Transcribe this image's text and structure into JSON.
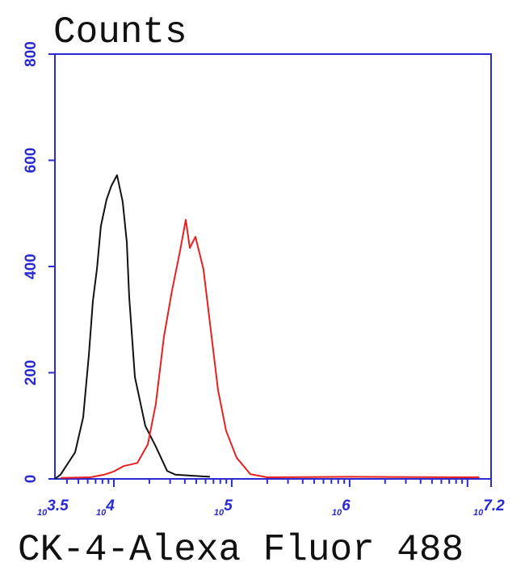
{
  "chart_data": {
    "type": "line",
    "title": "Counts",
    "xlabel": "CK-4-Alexa Fluor 488",
    "ylabel": "",
    "x_scale": "log10",
    "xlim": [
      3.5,
      7.2
    ],
    "ylim": [
      0,
      800
    ],
    "x_tick_labels": [
      {
        "value": 3.5,
        "base": "10",
        "exp": "3.5"
      },
      {
        "value": 4,
        "base": "10",
        "exp": "4"
      },
      {
        "value": 5,
        "base": "10",
        "exp": "5"
      },
      {
        "value": 6,
        "base": "10",
        "exp": "6"
      },
      {
        "value": 7.2,
        "base": "10",
        "exp": "7.2"
      }
    ],
    "y_ticks": [
      "0",
      "200",
      "400",
      "600",
      "800"
    ],
    "grid": false,
    "axis_color": "#2a2ad0",
    "series": [
      {
        "color": "#111111",
        "points": [
          [
            3.5,
            0
          ],
          [
            3.548,
            8
          ],
          [
            3.671,
            50
          ],
          [
            3.74,
            116
          ],
          [
            3.788,
            233
          ],
          [
            3.822,
            335
          ],
          [
            3.856,
            395
          ],
          [
            3.89,
            476
          ],
          [
            3.938,
            526
          ],
          [
            3.979,
            552
          ],
          [
            4.027,
            572
          ],
          [
            4.075,
            522
          ],
          [
            4.11,
            446
          ],
          [
            4.13,
            344
          ],
          [
            4.178,
            192
          ],
          [
            4.267,
            100
          ],
          [
            4.356,
            61
          ],
          [
            4.452,
            15
          ],
          [
            4.521,
            8
          ],
          [
            4.815,
            4
          ]
        ]
      },
      {
        "color": "#e82020",
        "points": [
          [
            3.548,
            2
          ],
          [
            3.8,
            3
          ],
          [
            3.92,
            8
          ],
          [
            4.0,
            14
          ],
          [
            4.082,
            24
          ],
          [
            4.199,
            30
          ],
          [
            4.288,
            65
          ],
          [
            4.356,
            141
          ],
          [
            4.425,
            268
          ],
          [
            4.493,
            354
          ],
          [
            4.562,
            430
          ],
          [
            4.61,
            488
          ],
          [
            4.644,
            435
          ],
          [
            4.692,
            456
          ],
          [
            4.76,
            395
          ],
          [
            4.815,
            294
          ],
          [
            4.884,
            167
          ],
          [
            4.952,
            91
          ],
          [
            5.041,
            40
          ],
          [
            5.158,
            9
          ],
          [
            5.3,
            3
          ],
          [
            6.0,
            4
          ],
          [
            7.0,
            3
          ],
          [
            7.1,
            3
          ]
        ]
      }
    ]
  }
}
